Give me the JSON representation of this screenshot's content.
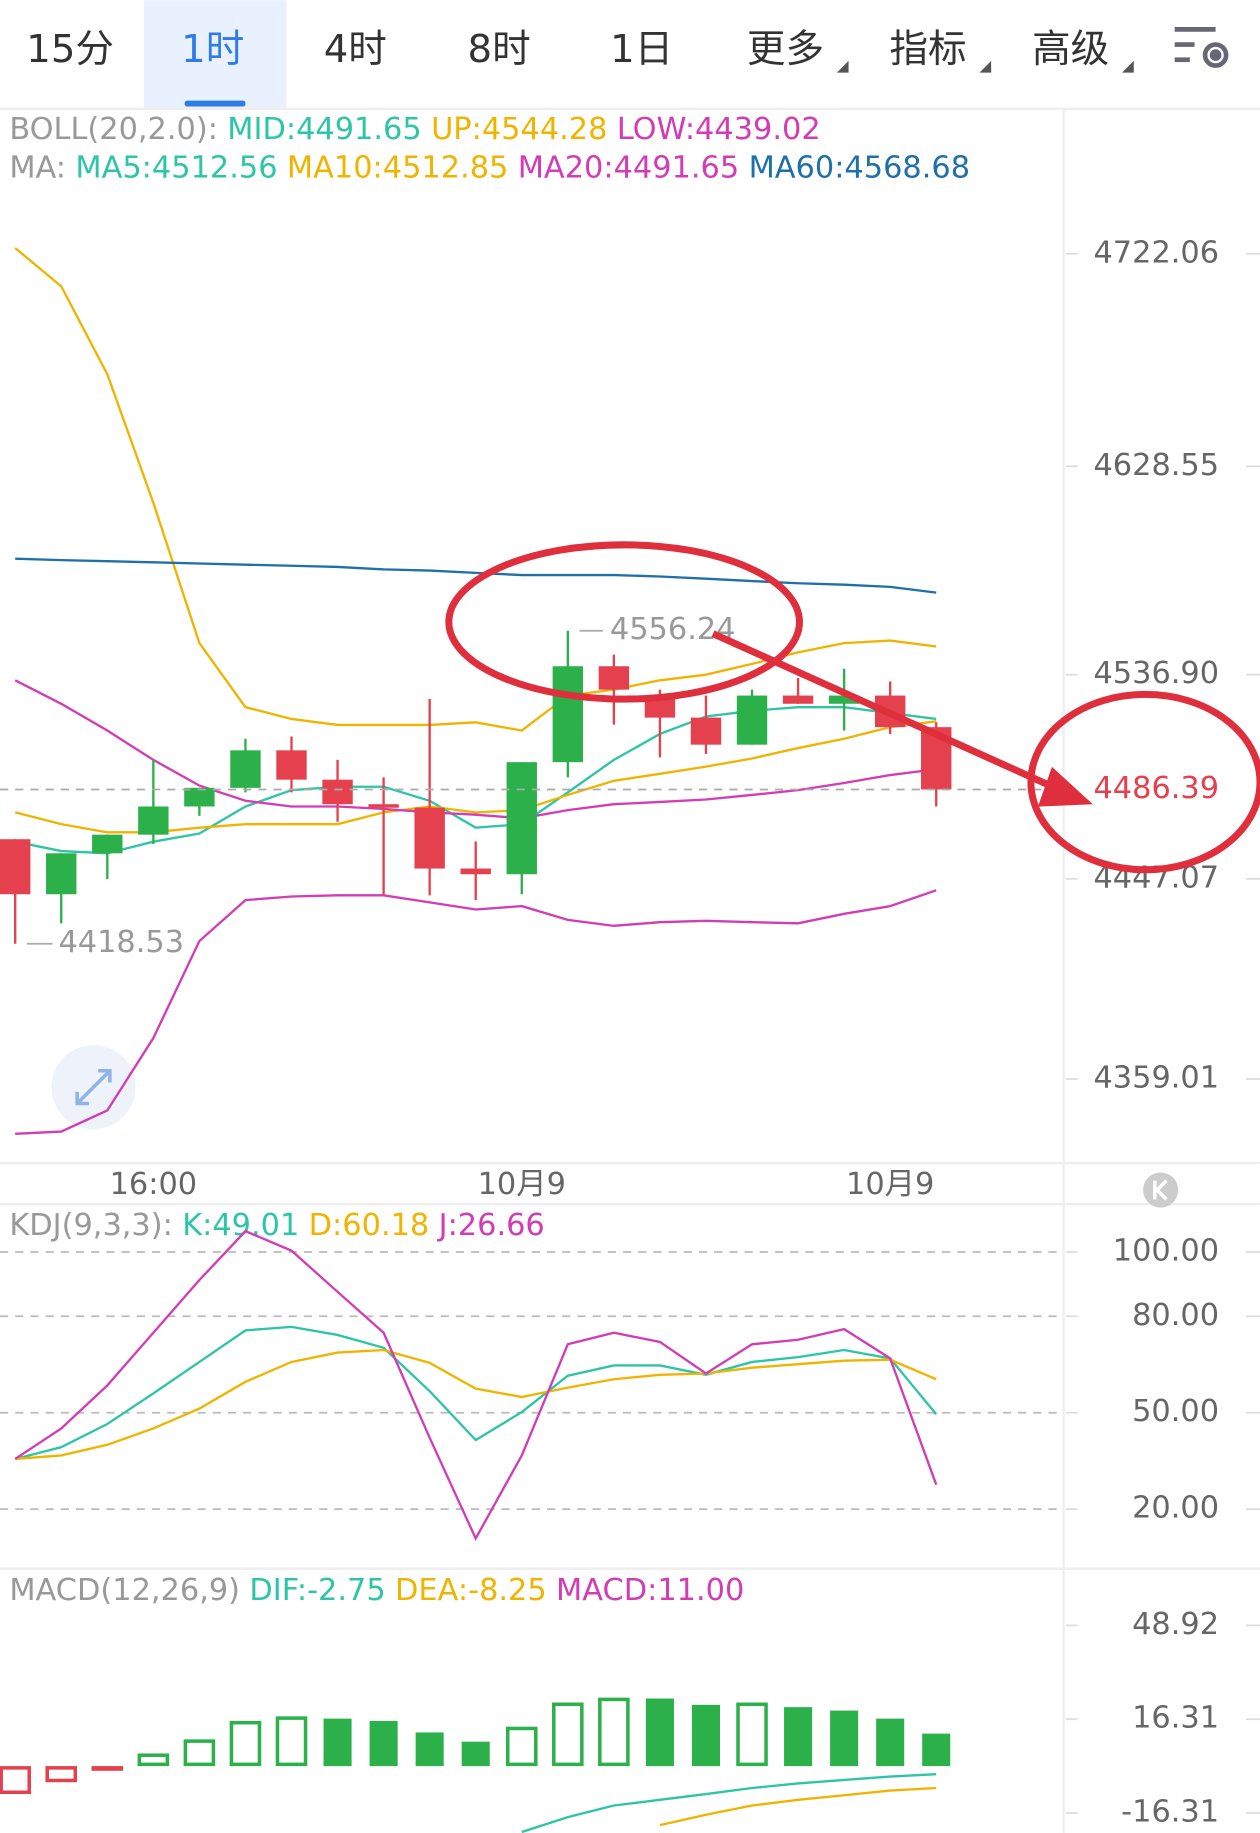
{
  "tabs": [
    "15分",
    "1时",
    "4时",
    "8时",
    "1日",
    "更多",
    "指标",
    "高级"
  ],
  "selected_tab": 1,
  "chart_data": [
    {
      "type": "candlestick",
      "categories": [
        null,
        null,
        null,
        "16:00",
        null,
        null,
        null,
        null,
        null,
        null,
        null,
        "10月9",
        null,
        null,
        null,
        null,
        null,
        null,
        null,
        "10月9",
        null
      ],
      "open": [
        4464.5,
        4440.3,
        4458.3,
        4466.5,
        4478.9,
        4487.1,
        4503.6,
        4490.7,
        4479.9,
        4478.4,
        4451.6,
        4449.1,
        4498.4,
        4540.6,
        4526.2,
        4518.0,
        4506.1,
        4527.7,
        4524.1,
        4527.7,
        4513.8
      ],
      "close": [
        4440.3,
        4458.3,
        4466.5,
        4478.9,
        4487.1,
        4503.6,
        4490.7,
        4479.9,
        4478.4,
        4451.6,
        4449.1,
        4498.4,
        4540.6,
        4530.3,
        4518.0,
        4506.1,
        4527.7,
        4524.1,
        4527.7,
        4513.8,
        4486.39
      ],
      "high": [
        4464.5,
        4458.3,
        4466.5,
        4499.4,
        4487.1,
        4508.7,
        4509.7,
        4499.4,
        4491.7,
        4526.2,
        4463.5,
        4498.4,
        4556.24,
        4545.7,
        4530.3,
        4527.7,
        4530.3,
        4535.4,
        4539.5,
        4533.9,
        4515.9
      ],
      "low": [
        4418.53,
        4427.5,
        4447.0,
        4462.4,
        4474.8,
        4485.1,
        4485.1,
        4472.2,
        4439.8,
        4439.8,
        4437.7,
        4440.3,
        4491.7,
        4514.9,
        4500.5,
        4502.0,
        4506.1,
        4524.1,
        4512.3,
        4510.8,
        4478.9
      ],
      "up_color": "#2bb04a",
      "down_color": "#e5404e",
      "last": 4486.39,
      "last_color": "#e5404e",
      "ylim": [
        4322.0,
        4784.8
      ],
      "yticks": [
        4722.06,
        4628.55,
        {
          "value": 4536.9,
          "label": "4536.90"
        },
        4447.07,
        4359.01
      ],
      "grid": false,
      "legend_groups": [
        {
          "title": "BOLL(20,2.0):",
          "series": [
            {
              "name": "MID:4491.65",
              "color": "#2ec4a6"
            },
            {
              "name": "UP:4544.28",
              "color": "#f0b400",
              "values": [
                4724.6,
                4707.7,
                4669.1,
                4612.5,
                4550.8,
                4522.6,
                4517.4,
                4514.8,
                4514.8,
                4514.8,
                4515.9,
                4512.3,
                4527.7,
                4530.3,
                4534.4,
                4536.9,
                4541.6,
                4546.7,
                4550.8,
                4551.9,
                4549.3
              ]
            },
            {
              "name": "LOW:4439.02",
              "color": "#d23cb4",
              "values": [
                4334.9,
                4335.9,
                4345.2,
                4377.0,
                4419.7,
                4437.7,
                4439.3,
                4439.8,
                4439.8,
                4436.7,
                4433.6,
                4435.1,
                4429.0,
                4426.4,
                4428.0,
                4428.6,
                4428.0,
                4427.5,
                4431.7,
                4435.1,
                4442.0
              ]
            }
          ]
        },
        {
          "title": "MA:",
          "series": [
            {
              "name": "MA5:4512.56",
              "color": "#2ec4a6",
              "values": [
                4463.4,
                4459.3,
                4458.3,
                4463.4,
                4467.0,
                4478.9,
                4486.1,
                4487.6,
                4487.6,
                4481.4,
                4469.6,
                4471.1,
                4485.1,
                4499.4,
                4510.8,
                4518.5,
                4521.0,
                4522.6,
                4522.6,
                4520.0,
                4517.4
              ]
            },
            {
              "name": "MA10:4512.85",
              "color": "#f0b400",
              "values": [
                4476.3,
                4471.1,
                4467.5,
                4467.5,
                4469.6,
                4471.1,
                4471.1,
                4471.1,
                4476.3,
                4478.9,
                4476.3,
                4477.3,
                4484.0,
                4490.2,
                4493.3,
                4496.4,
                4500.0,
                4504.6,
                4508.7,
                4513.8,
                4516.4
              ]
            },
            {
              "name": "MA20:4491.65",
              "color": "#d23cb4",
              "values": [
                4534.4,
                4524.1,
                4512.3,
                4499.4,
                4488.1,
                4481.4,
                4478.9,
                4478.9,
                4477.8,
                4476.3,
                4475.3,
                4473.7,
                4477.3,
                4479.9,
                4480.9,
                4482.0,
                4484.0,
                4486.1,
                4489.2,
                4492.7,
                4495.3
              ]
            },
            {
              "name": "MA60:4568.68",
              "color": "#1f6fa8",
              "values": [
                4587.9,
                4587.3,
                4586.8,
                4586.3,
                4585.8,
                4585.3,
                4584.8,
                4584.3,
                4583.2,
                4582.7,
                4581.7,
                4580.7,
                4580.7,
                4580.7,
                4580.1,
                4579.1,
                4578.1,
                4577.1,
                4576.5,
                4575.5,
                4573.0
              ]
            }
          ]
        }
      ]
    },
    {
      "type": "line",
      "ylim": [
        2.2,
        113.1
      ],
      "yticks": [
        {
          "value": 100,
          "label": "100.00"
        },
        {
          "value": 80,
          "label": "80.00"
        },
        {
          "value": 50,
          "label": "50.00"
        },
        {
          "value": 20,
          "label": "20.00"
        }
      ],
      "grid": true,
      "legend_groups": [
        {
          "title": "KDJ(9,3,3):",
          "series": [
            {
              "name": "K:49.01",
              "color": "#2ec4a6",
              "values": [
                35.6,
                39.3,
                46.5,
                56.0,
                65.8,
                75.6,
                76.7,
                74.2,
                70.2,
                56.7,
                41.5,
                50.2,
                61.5,
                64.7,
                64.7,
                61.8,
                65.8,
                67.3,
                69.5,
                66.9,
                49.5
              ]
            },
            {
              "name": "D:60.18",
              "color": "#f0b400",
              "values": [
                35.6,
                36.7,
                40.0,
                45.1,
                51.3,
                59.6,
                65.8,
                68.7,
                69.5,
                65.5,
                57.5,
                54.9,
                57.8,
                60.4,
                61.8,
                62.2,
                64.0,
                65.1,
                66.2,
                66.5,
                60.4
              ]
            },
            {
              "name": "J:26.66",
              "color": "#d23cb4",
              "values": [
                35.6,
                45.1,
                58.5,
                74.9,
                91.3,
                106.5,
                100.4,
                87.6,
                74.9,
                42.2,
                10.9,
                36.7,
                71.3,
                74.9,
                72.0,
                62.2,
                71.3,
                72.7,
                76.0,
                66.9,
                27.6
              ]
            }
          ]
        }
      ]
    },
    {
      "type": "macd",
      "ylim": [
        -23.2,
        67.4
      ],
      "yticks": [
        48.92,
        16.31,
        -16.31
      ],
      "grid": false,
      "up_color": "#2bb04a",
      "down_color": "#e5404e",
      "legend_groups": [
        {
          "title": "MACD(12,26,9)",
          "series": [
            {
              "name": "DIF:-2.75",
              "color": "#2ec4a6",
              "values": [
                null,
                null,
                null,
                null,
                null,
                null,
                null,
                null,
                null,
                null,
                null,
                -22.9,
                -17.7,
                -13.7,
                -11.7,
                -9.7,
                -7.6,
                -6.0,
                -4.8,
                -3.6,
                -2.8
              ]
            },
            {
              "name": "DEA:-8.25",
              "color": "#f0b400",
              "values": [
                null,
                null,
                null,
                null,
                null,
                null,
                null,
                null,
                null,
                null,
                null,
                null,
                null,
                null,
                -20.5,
                -16.9,
                -13.7,
                -11.7,
                -10.1,
                -8.5,
                -7.6
              ]
            },
            {
              "name": "MACD:11.00",
              "color": "#d23cb4",
              "bars": true,
              "values": [
                -9.7,
                -5.6,
                -1.2,
                4.4,
                9.3,
                15.7,
                17.3,
                16.5,
                15.7,
                11.7,
                8.5,
                13.7,
                22.1,
                23.8,
                23.5,
                21.3,
                22.1,
                20.5,
                19.3,
                16.5,
                11.3
              ]
            }
          ]
        }
      ]
    }
  ]
}
